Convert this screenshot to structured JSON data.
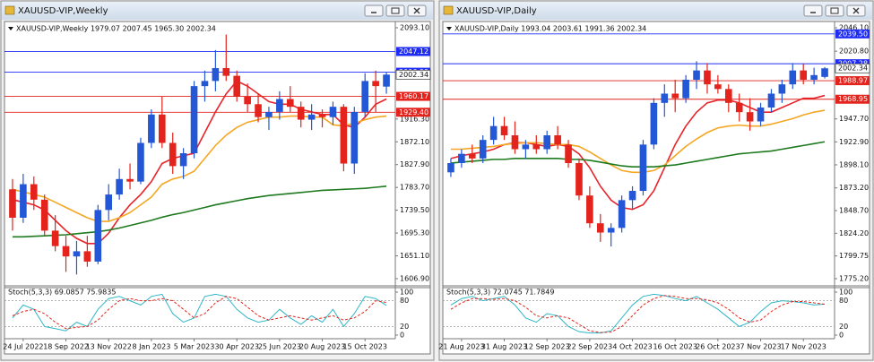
{
  "windows": [
    {
      "title": "XAUUSD-VIP,Weekly",
      "chart_data": {
        "type": "candlestick",
        "info": "XAUUSD-VIP,Weekly  1979.07 2007.45 1965.30 2002.34",
        "categories": [
          null,
          "24 Jul 2022",
          null,
          null,
          null,
          "18 Sep 2022",
          null,
          null,
          null,
          "13 Nov 2022",
          null,
          null,
          null,
          "8 Jan 2023",
          null,
          null,
          null,
          "5 Mar 2023",
          null,
          null,
          null,
          "30 Apr 2023",
          null,
          null,
          null,
          "25 Jun 2023",
          null,
          null,
          null,
          "20 Aug 2023",
          null,
          null,
          null,
          "15 Oct 2023",
          null,
          null
        ],
        "open": [
          1780,
          1725,
          1790,
          1760,
          1700,
          1670,
          1650,
          1660,
          1640,
          1740,
          1770,
          1800,
          1795,
          1870,
          1925,
          1870,
          1825,
          1850,
          1980,
          1990,
          2015,
          2000,
          1960,
          1945,
          1920,
          1930,
          1955,
          1940,
          1915,
          1925,
          1920,
          1940,
          1830,
          1930,
          1990,
          1979.07
        ],
        "high": [
          1800,
          1810,
          1805,
          1770,
          1730,
          1690,
          1680,
          1690,
          1750,
          1790,
          1820,
          1830,
          1880,
          1935,
          1960,
          1890,
          1860,
          1990,
          2010,
          2050,
          2080,
          2010,
          1985,
          1965,
          1940,
          1970,
          1980,
          1950,
          1945,
          1935,
          1950,
          1945,
          1940,
          2005,
          2010,
          2007.45
        ],
        "low": [
          1700,
          1715,
          1740,
          1690,
          1660,
          1620,
          1615,
          1630,
          1635,
          1720,
          1760,
          1780,
          1790,
          1860,
          1860,
          1810,
          1800,
          1840,
          1950,
          1970,
          1990,
          1950,
          1930,
          1910,
          1895,
          1915,
          1930,
          1900,
          1895,
          1900,
          1905,
          1815,
          1810,
          1920,
          1930,
          1965.3
        ],
        "close": [
          1725,
          1790,
          1760,
          1700,
          1670,
          1650,
          1660,
          1640,
          1740,
          1770,
          1800,
          1795,
          1870,
          1925,
          1870,
          1825,
          1850,
          1980,
          1990,
          2015,
          2000,
          1960,
          1945,
          1920,
          1930,
          1955,
          1940,
          1915,
          1925,
          1920,
          1940,
          1830,
          1930,
          1990,
          1980,
          2002.34
        ],
        "up_color": "#2457d6",
        "down_color": "#e3231c",
        "ylim": [
          1606.9,
          2093.1
        ],
        "yticks": [
          {
            "value": 2093.1,
            "label": "2093.10"
          },
          {
            "value": 1916.3,
            "label": "1916.30"
          },
          {
            "value": 1872.1,
            "label": "1872.10"
          },
          {
            "value": 1827.9,
            "label": "1827.90"
          },
          {
            "value": 1783.7,
            "label": "1783.70"
          },
          {
            "value": 1739.5,
            "label": "1739.50"
          },
          {
            "value": 1695.3,
            "label": "1695.30"
          },
          {
            "value": 1651.1,
            "label": "1651.10"
          },
          {
            "value": 1606.9,
            "label": "1606.90"
          }
        ],
        "levels": [
          {
            "value": 2047.12,
            "label": "2047.12",
            "color": "#1f2cf5"
          },
          {
            "value": 2006.99,
            "label": "2006.99",
            "color": "#1f2cf5"
          },
          {
            "value": 1960.17,
            "label": "1960.17",
            "color": "#e3231c"
          },
          {
            "value": 1929.4,
            "label": "1929.40",
            "color": "#e3231c"
          }
        ],
        "price": {
          "value": 2002.34,
          "label": "2002.34"
        },
        "lines": [
          {
            "color": "#e8232a",
            "values": [
              1760,
              1755,
              1750,
              1740,
              1720,
              1700,
              1685,
              1675,
              1675,
              1695,
              1725,
              1750,
              1770,
              1795,
              1830,
              1840,
              1845,
              1850,
              1890,
              1930,
              1965,
              1990,
              1980,
              1965,
              1950,
              1945,
              1945,
              1935,
              1930,
              1925,
              1925,
              1905,
              1900,
              1920,
              1945,
              1955
            ]
          },
          {
            "color": "#f5a623",
            "values": [
              1780,
              1775,
              1770,
              1765,
              1755,
              1745,
              1735,
              1725,
              1718,
              1718,
              1725,
              1735,
              1750,
              1765,
              1790,
              1800,
              1805,
              1815,
              1840,
              1865,
              1885,
              1900,
              1910,
              1915,
              1920,
              1920,
              1922,
              1922,
              1920,
              1920,
              1905,
              1903,
              1908,
              1915,
              1920,
              1922
            ]
          },
          {
            "color": "#1e7a1e",
            "values": [
              1688,
              1688,
              1689,
              1690,
              1691,
              1692,
              1694,
              1696,
              1698,
              1701,
              1705,
              1710,
              1715,
              1720,
              1726,
              1731,
              1735,
              1740,
              1745,
              1750,
              1754,
              1758,
              1762,
              1765,
              1768,
              1770,
              1772,
              1774,
              1776,
              1778,
              1779,
              1780,
              1781,
              1782,
              1784,
              1786
            ]
          }
        ],
        "stoch": {
          "label": "Stoch(5,3,3) 69.0857 75.9835",
          "ylim": [
            0,
            100
          ],
          "yticks": [
            100,
            80,
            20,
            0
          ],
          "series": [
            {
              "color": "#2fb6c6",
              "values": [
                40,
                70,
                60,
                20,
                15,
                10,
                30,
                20,
                60,
                85,
                90,
                80,
                70,
                90,
                95,
                50,
                30,
                40,
                90,
                95,
                90,
                60,
                40,
                30,
                35,
                60,
                40,
                25,
                45,
                30,
                60,
                20,
                50,
                90,
                85,
                69.0857
              ]
            },
            {
              "color": "#e3231c",
              "dash": true,
              "values": [
                45,
                55,
                60,
                50,
                30,
                15,
                18,
                20,
                35,
                60,
                80,
                85,
                80,
                80,
                85,
                80,
                60,
                40,
                50,
                75,
                90,
                85,
                65,
                45,
                35,
                40,
                45,
                40,
                35,
                40,
                45,
                35,
                40,
                55,
                80,
                75.9835
              ]
            }
          ]
        }
      }
    },
    {
      "title": "XAUUSD-VIP,Daily",
      "chart_data": {
        "type": "candlestick",
        "info": "XAUUSD-VIP,Daily  1993.04 2003.61 1991.36 2002.34",
        "categories": [
          null,
          "21 Aug 2023",
          null,
          null,
          null,
          "31 Aug 2023",
          null,
          null,
          null,
          "12 Sep 2023",
          null,
          null,
          null,
          "22 Sep 2023",
          null,
          null,
          null,
          "4 Oct 2023",
          null,
          null,
          null,
          "16 Oct 2023",
          null,
          null,
          null,
          "26 Oct 2023",
          null,
          null,
          null,
          "7 Nov 2023",
          null,
          null,
          null,
          "17 Nov 2023",
          null,
          null
        ],
        "open": [
          1890,
          1900,
          1910,
          1905,
          1925,
          1940,
          1930,
          1915,
          1920,
          1915,
          1930,
          1920,
          1900,
          1865,
          1835,
          1825,
          1830,
          1860,
          1870,
          1920,
          1965,
          1975,
          1970,
          1990,
          2000,
          1985,
          1980,
          1965,
          1955,
          1945,
          1960,
          1975,
          1985,
          2000,
          1990,
          1993.04
        ],
        "high": [
          1905,
          1915,
          1920,
          1930,
          1950,
          1950,
          1945,
          1925,
          1930,
          1935,
          1940,
          1925,
          1905,
          1875,
          1845,
          1835,
          1865,
          1875,
          1925,
          1970,
          1985,
          1990,
          1995,
          2010,
          2008,
          1995,
          1985,
          1975,
          1970,
          1965,
          1980,
          1990,
          2008,
          2007,
          2003,
          2003.61
        ],
        "low": [
          1885,
          1895,
          1900,
          1900,
          1920,
          1925,
          1910,
          1905,
          1910,
          1910,
          1915,
          1895,
          1860,
          1830,
          1815,
          1810,
          1825,
          1850,
          1865,
          1915,
          1950,
          1955,
          1965,
          1980,
          1975,
          1975,
          1955,
          1945,
          1935,
          1940,
          1955,
          1965,
          1980,
          1985,
          1985,
          1991.36
        ],
        "close": [
          1900,
          1910,
          1905,
          1925,
          1940,
          1930,
          1915,
          1920,
          1915,
          1930,
          1920,
          1900,
          1865,
          1835,
          1825,
          1830,
          1860,
          1870,
          1920,
          1965,
          1975,
          1970,
          1990,
          2000,
          1985,
          1980,
          1965,
          1955,
          1945,
          1960,
          1975,
          1985,
          2000,
          1990,
          1995,
          2002.34
        ],
        "up_color": "#2457d6",
        "down_color": "#e3231c",
        "ylim": [
          1775.2,
          2046.1
        ],
        "yticks": [
          {
            "value": 2046.1,
            "label": "2046.10"
          },
          {
            "value": 2020.8,
            "label": "2020.80"
          },
          {
            "value": 1947.7,
            "label": "1947.70"
          },
          {
            "value": 1922.9,
            "label": "1922.90"
          },
          {
            "value": 1898.1,
            "label": "1898.10"
          },
          {
            "value": 1873.2,
            "label": "1873.20"
          },
          {
            "value": 1848.7,
            "label": "1848.70"
          },
          {
            "value": 1824.2,
            "label": "1824.20"
          },
          {
            "value": 1799.75,
            "label": "1799.75"
          },
          {
            "value": 1775.2,
            "label": "1775.20"
          }
        ],
        "levels": [
          {
            "value": 2039.5,
            "label": "2039.50",
            "color": "#1f2cf5"
          },
          {
            "value": 2007.28,
            "label": "2007.28",
            "color": "#1f2cf5"
          },
          {
            "value": 1988.97,
            "label": "1988.97",
            "color": "#e3231c"
          },
          {
            "value": 1968.95,
            "label": "1968.95",
            "color": "#e3231c"
          }
        ],
        "price": {
          "value": 2002.34,
          "label": "2002.34"
        },
        "lines": [
          {
            "color": "#e8232a",
            "values": [
              1905,
              1908,
              1910,
              1912,
              1915,
              1920,
              1922,
              1922,
              1920,
              1918,
              1920,
              1918,
              1910,
              1895,
              1875,
              1860,
              1852,
              1850,
              1855,
              1870,
              1895,
              1920,
              1940,
              1955,
              1965,
              1968,
              1968,
              1965,
              1960,
              1955,
              1955,
              1960,
              1965,
              1970,
              1970,
              1973
            ]
          },
          {
            "color": "#f5a623",
            "values": [
              1915,
              1915,
              1916,
              1917,
              1918,
              1920,
              1921,
              1922,
              1922,
              1921,
              1920,
              1920,
              1918,
              1912,
              1905,
              1898,
              1892,
              1890,
              1890,
              1892,
              1898,
              1908,
              1918,
              1926,
              1933,
              1938,
              1940,
              1941,
              1940,
              1940,
              1942,
              1945,
              1948,
              1952,
              1955,
              1957
            ]
          },
          {
            "color": "#1e7a1e",
            "values": [
              1900,
              1901,
              1902,
              1903,
              1904,
              1904,
              1905,
              1905,
              1905,
              1905,
              1905,
              1904,
              1904,
              1903,
              1901,
              1899,
              1897,
              1896,
              1896,
              1896,
              1897,
              1898,
              1900,
              1902,
              1904,
              1906,
              1908,
              1910,
              1911,
              1912,
              1913,
              1915,
              1917,
              1919,
              1921,
              1923
            ]
          }
        ],
        "stoch": {
          "label": "Stoch(5,3,3) 72.0745 71.7849",
          "ylim": [
            0,
            100
          ],
          "yticks": [
            100,
            80,
            20,
            0
          ],
          "series": [
            {
              "color": "#2fb6c6",
              "values": [
                70,
                85,
                90,
                80,
                85,
                90,
                70,
                40,
                30,
                50,
                45,
                20,
                8,
                5,
                5,
                10,
                40,
                70,
                90,
                95,
                92,
                85,
                80,
                90,
                75,
                60,
                40,
                20,
                30,
                55,
                75,
                80,
                78,
                75,
                70,
                72.0745
              ]
            },
            {
              "color": "#e3231c",
              "dash": true,
              "values": [
                60,
                75,
                85,
                85,
                83,
                85,
                80,
                65,
                45,
                40,
                45,
                40,
                25,
                10,
                6,
                7,
                20,
                45,
                70,
                85,
                92,
                90,
                85,
                85,
                82,
                75,
                60,
                40,
                30,
                35,
                55,
                70,
                78,
                78,
                75,
                71.7849
              ]
            }
          ]
        }
      }
    }
  ]
}
